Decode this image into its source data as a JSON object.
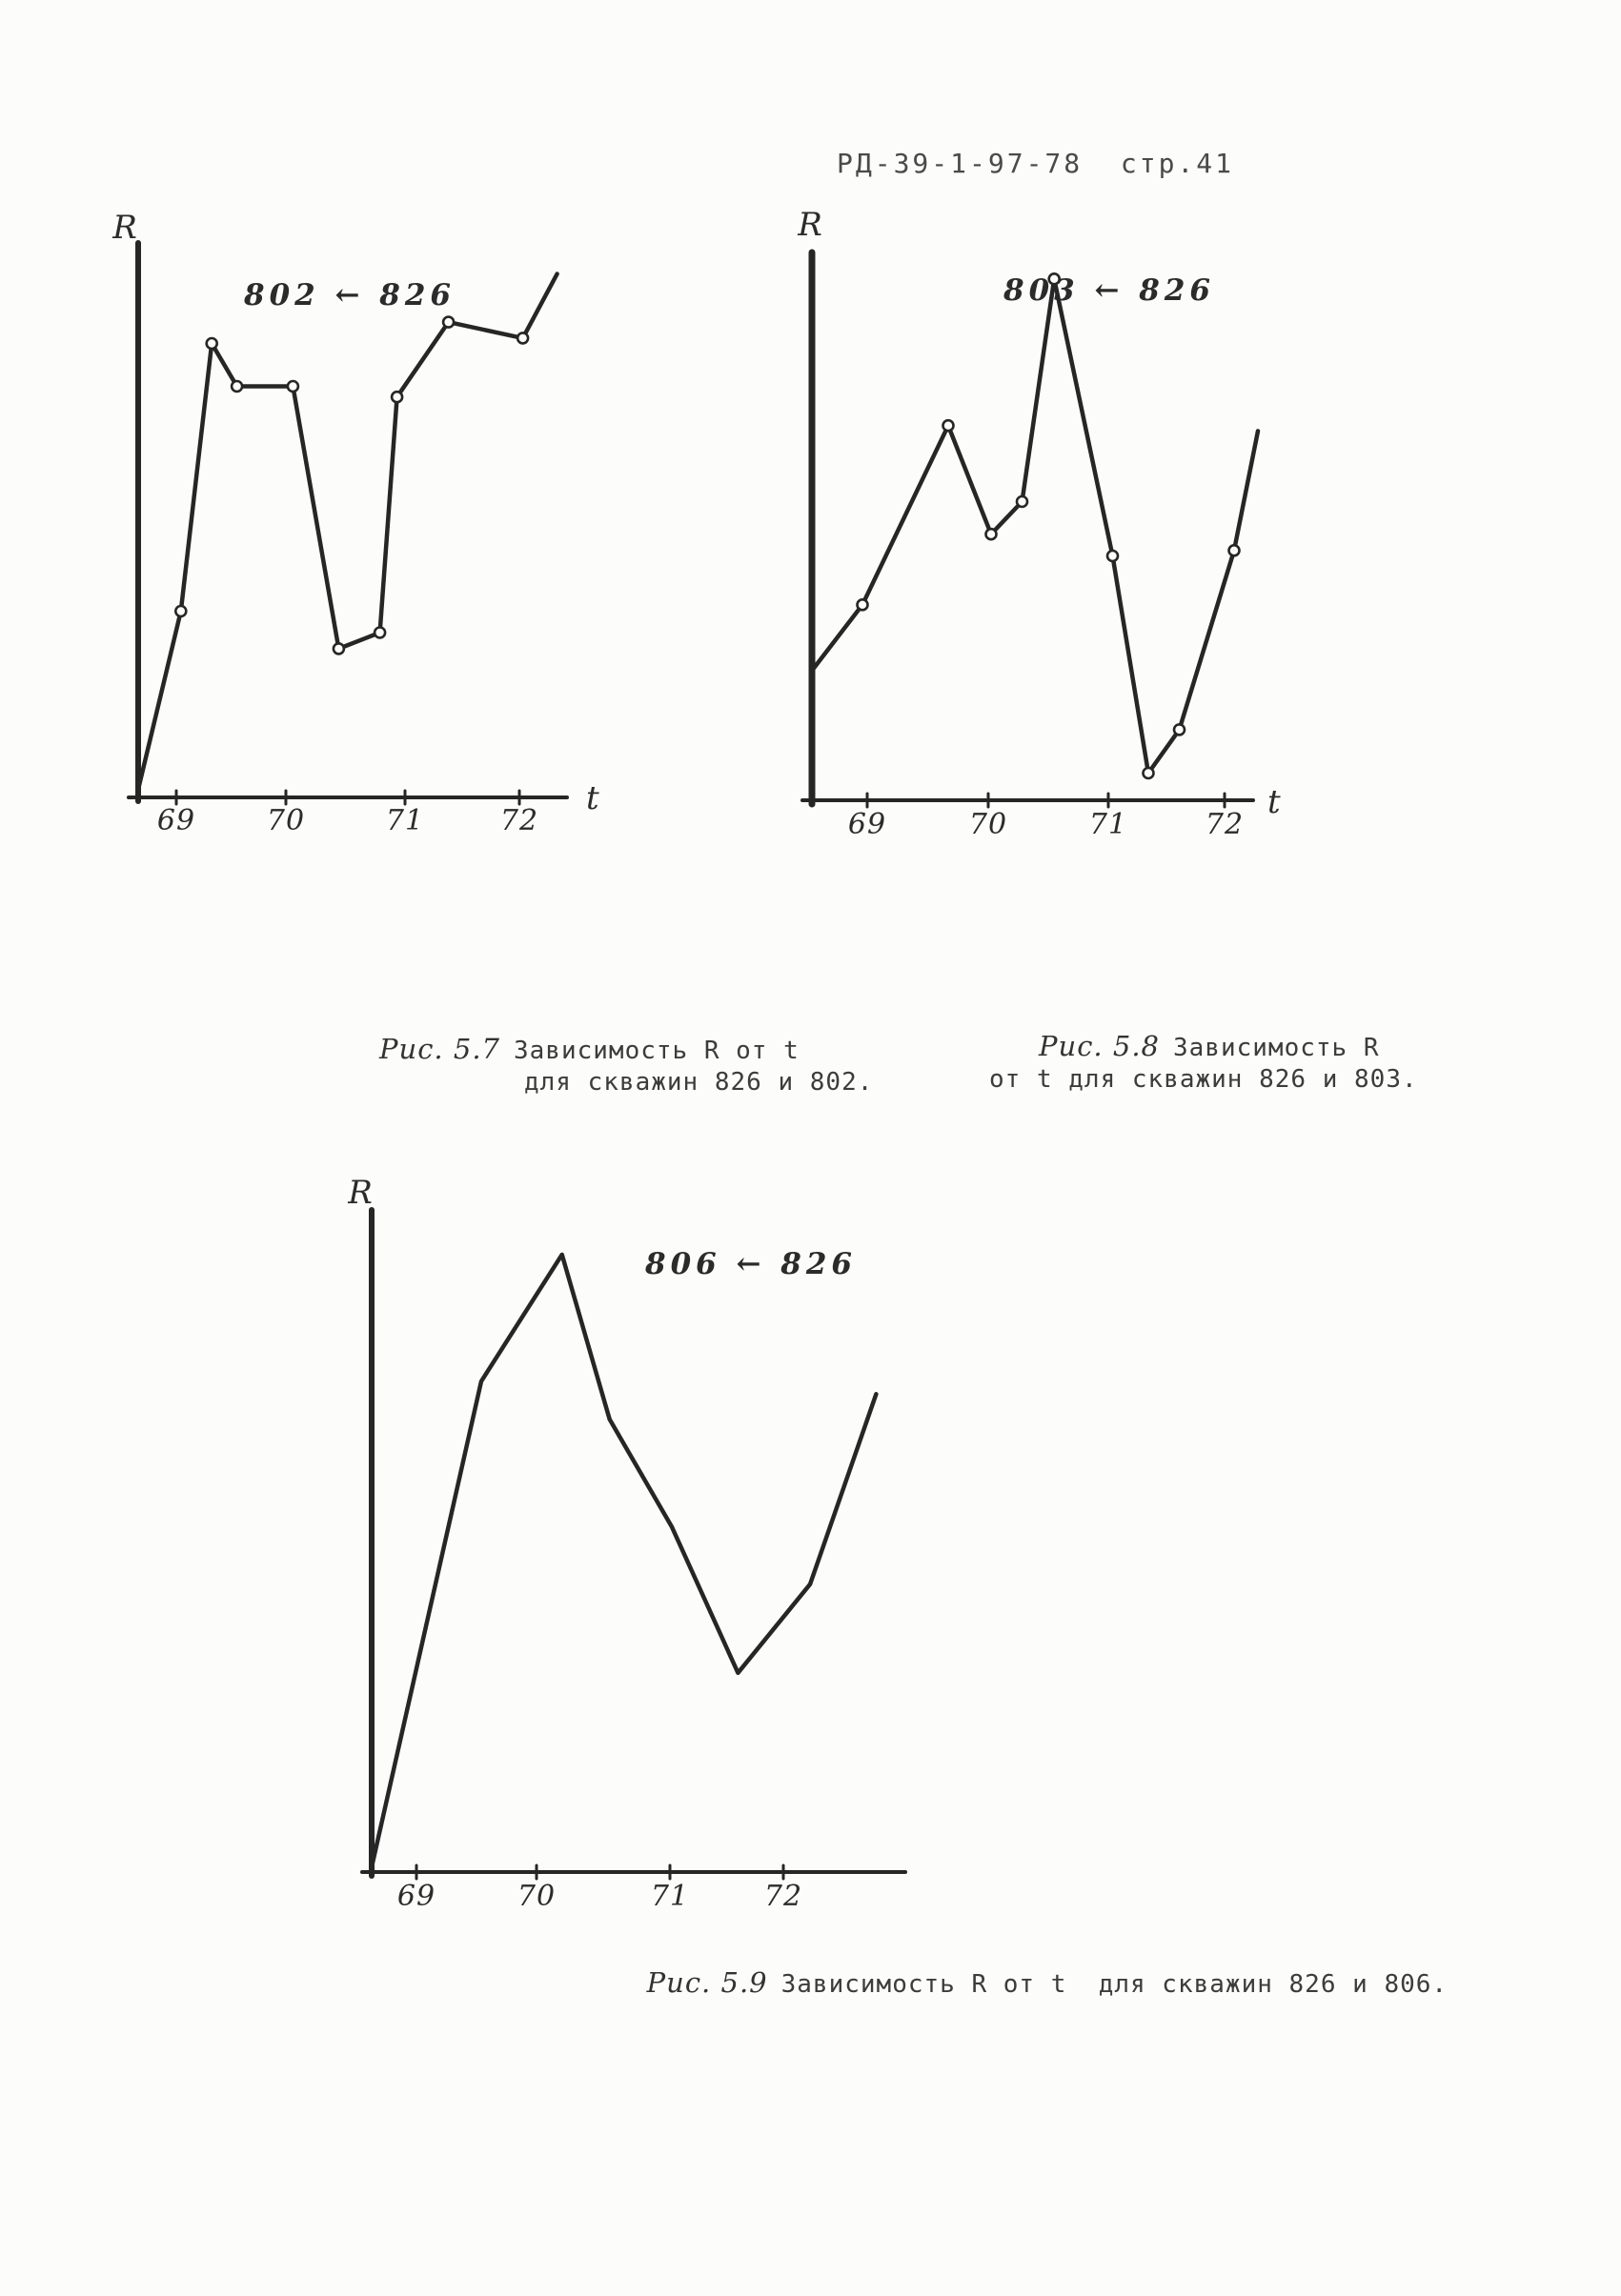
{
  "page": {
    "header": "РД-39-1-97-78  стр.41",
    "paper_color": "#fcfcfb",
    "ink_color": "#2b2b2b"
  },
  "figures": [
    {
      "label": "Рис. 5.7",
      "caption_lines": [
        "Зависимость R от t",
        "для скважин 826 и 802."
      ]
    },
    {
      "label": "Рис. 5.8",
      "caption_lines": [
        "Зависимость R",
        "от t для скважин 826 и 803."
      ]
    },
    {
      "label": "Рис. 5.9",
      "caption_lines": [
        "Зависимость R от t  для скважин 826 и 806."
      ]
    }
  ],
  "chart_data": [
    {
      "type": "line",
      "figure": "Рис. 5.7",
      "title": "802 ← 826",
      "ylabel": "R",
      "xlabel": "t",
      "x_tick_labels": [
        "69",
        "70",
        "71",
        "72"
      ],
      "x_range": [
        68.5,
        72.5
      ],
      "y_range": [
        0,
        100
      ],
      "grid": false,
      "points": [
        [
          68.67,
          0
        ],
        [
          69.04,
          33
        ],
        [
          69.31,
          83
        ],
        [
          69.53,
          75
        ],
        [
          70.02,
          75
        ],
        [
          70.42,
          26
        ],
        [
          70.78,
          29
        ],
        [
          70.93,
          73
        ],
        [
          71.38,
          87
        ],
        [
          72.03,
          84
        ],
        [
          72.33,
          96
        ]
      ],
      "marker_indices": [
        1,
        2,
        3,
        4,
        5,
        6,
        7,
        8,
        9
      ]
    },
    {
      "type": "line",
      "figure": "Рис. 5.8",
      "title": "803 ← 826",
      "ylabel": "R",
      "xlabel": "t",
      "x_tick_labels": [
        "69",
        "70",
        "71",
        "72"
      ],
      "x_range": [
        68.5,
        72.5
      ],
      "y_range": [
        0,
        100
      ],
      "grid": false,
      "points": [
        [
          68.54,
          24
        ],
        [
          68.96,
          36
        ],
        [
          69.68,
          69
        ],
        [
          70.04,
          49
        ],
        [
          70.3,
          55
        ],
        [
          70.57,
          96
        ],
        [
          71.06,
          45
        ],
        [
          71.36,
          5
        ],
        [
          71.62,
          13
        ],
        [
          72.08,
          46
        ],
        [
          72.28,
          68
        ]
      ],
      "marker_indices": [
        1,
        2,
        3,
        4,
        5,
        6,
        7,
        8,
        9
      ]
    },
    {
      "type": "line",
      "figure": "Рис. 5.9",
      "title": "806 ← 826",
      "ylabel": "R",
      "xlabel": "",
      "x_tick_labels": [
        "69",
        "70",
        "71",
        "72"
      ],
      "x_range": [
        68.5,
        72.8
      ],
      "y_range": [
        0,
        100
      ],
      "grid": false,
      "points": [
        [
          68.63,
          0
        ],
        [
          69.53,
          77
        ],
        [
          70.19,
          97
        ],
        [
          70.58,
          71
        ],
        [
          71.09,
          54
        ],
        [
          71.63,
          31
        ],
        [
          72.22,
          45
        ],
        [
          72.76,
          75
        ]
      ],
      "marker_indices": []
    }
  ]
}
